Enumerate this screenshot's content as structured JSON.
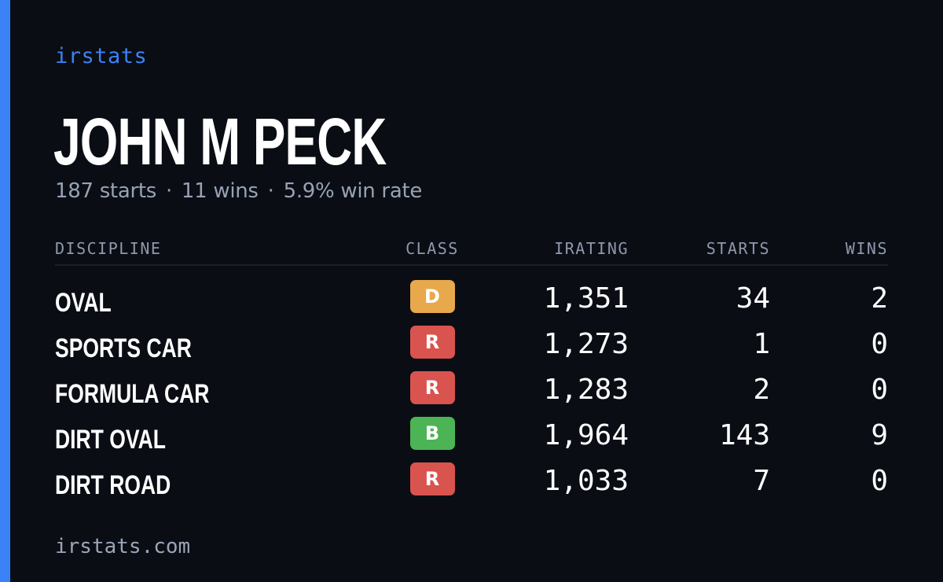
{
  "brand": {
    "name": "irstats",
    "color": "#3b82f6"
  },
  "accent_color": "#3b82f6",
  "driver": {
    "name": "JOHN M PECK",
    "starts_text": "187 starts",
    "wins_text": "11 wins",
    "winrate_text": "5.9% win rate",
    "separator": "·"
  },
  "table": {
    "headers": {
      "discipline": "DISCIPLINE",
      "class": "CLASS",
      "irating": "IRATING",
      "starts": "STARTS",
      "wins": "WINS"
    },
    "rows": [
      {
        "discipline": "OVAL",
        "class": "D",
        "class_color": "#e8a84c",
        "irating": "1,351",
        "starts": "34",
        "wins": "2"
      },
      {
        "discipline": "SPORTS CAR",
        "class": "R",
        "class_color": "#d9534f",
        "irating": "1,273",
        "starts": "1",
        "wins": "0"
      },
      {
        "discipline": "FORMULA CAR",
        "class": "R",
        "class_color": "#d9534f",
        "irating": "1,283",
        "starts": "2",
        "wins": "0"
      },
      {
        "discipline": "DIRT OVAL",
        "class": "B",
        "class_color": "#4cb454",
        "irating": "1,964",
        "starts": "143",
        "wins": "9"
      },
      {
        "discipline": "DIRT ROAD",
        "class": "R",
        "class_color": "#d9534f",
        "irating": "1,033",
        "starts": "7",
        "wins": "0"
      }
    ]
  },
  "footer": {
    "url": "irstats.com"
  }
}
